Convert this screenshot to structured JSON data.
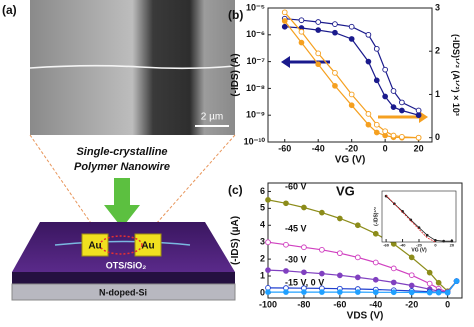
{
  "panel_a": {
    "label": "(a)",
    "scale_bar": "2 µm",
    "caption_line1": "Single-crystalline",
    "caption_line2": "Polymer Nanowire",
    "electrode_left": "Au",
    "electrode_right": "Au",
    "dielectric": "OTS/SiO₂",
    "substrate": "N-doped-Si"
  },
  "chart_data": [
    {
      "type": "line",
      "panel_label": "(b)",
      "xlabel": "VG (V)",
      "ylabel": "(-IDS) (A)",
      "y2label": "(-IDS)¹ᐟ² (A¹ᐟ²) × 10³",
      "log_y": true,
      "xlim": [
        -70,
        28
      ],
      "xticks": [
        -60,
        -40,
        -20,
        0,
        20
      ],
      "ylim": [
        1e-10,
        1e-05
      ],
      "yticks": [
        {
          "value": 1e-10,
          "label": "10⁻¹⁰"
        },
        {
          "value": 1e-09,
          "label": "10⁻⁹"
        },
        {
          "value": 1e-08,
          "label": "10⁻⁸"
        },
        {
          "value": 1e-07,
          "label": "10⁻⁷"
        },
        {
          "value": 1e-06,
          "label": "10⁻⁶"
        },
        {
          "value": 1e-05,
          "label": "10⁻⁵"
        }
      ],
      "y2lim": [
        -0.1,
        3
      ],
      "y2ticks": [
        0,
        1,
        2,
        3
      ],
      "x": [
        -60,
        -50,
        -40,
        -30,
        -20,
        -10,
        -5,
        0,
        5,
        10,
        20
      ],
      "series": [
        {
          "color": "#1a1a8c",
          "values": [
            2e-06,
            1.8e-06,
            1.5e-06,
            1.2e-06,
            7e-07,
            1e-07,
            2e-08,
            5e-09,
            2e-09,
            1.5e-09,
            1e-09
          ]
        },
        {
          "color": "#1a1a8c",
          "values": [
            4e-06,
            3.5e-06,
            3e-06,
            2.5e-06,
            2e-06,
            1e-06,
            3e-07,
            5e-08,
            8e-09,
            3e-09,
            1.5e-09
          ]
        },
        {
          "color": "#f5a020",
          "axis": "y2",
          "values": [
            2.7,
            2.2,
            1.7,
            1.2,
            0.75,
            0.3,
            0.12,
            0.05,
            0.01,
            0,
            0
          ]
        },
        {
          "color": "#f5a020",
          "axis": "y2",
          "values": [
            2.9,
            2.45,
            1.95,
            1.5,
            1.0,
            0.55,
            0.3,
            0.15,
            0.05,
            0.02,
            0
          ]
        }
      ]
    },
    {
      "type": "line",
      "panel_label": "(c)",
      "xlabel": "VDS (V)",
      "ylabel": "(-IDS) (µA)",
      "xlim": [
        -100,
        8
      ],
      "xticks": [
        -100,
        -80,
        -60,
        -40,
        -20,
        0
      ],
      "ylim": [
        -0.3,
        6.5
      ],
      "yticks": [
        0,
        1,
        2,
        3,
        4,
        5,
        6
      ],
      "x": [
        -100,
        -90,
        -80,
        -70,
        -60,
        -50,
        -40,
        -30,
        -20,
        -10,
        -5,
        0,
        5
      ],
      "annotations": [
        "-60 V",
        "-45 V",
        "-30 V",
        "-15 V, 0 V",
        "VG"
      ],
      "series": [
        {
          "color": "#8c8c1a",
          "values": [
            5.5,
            5.3,
            5.05,
            4.75,
            4.4,
            4.0,
            3.5,
            2.9,
            2.1,
            1.2,
            0.6,
            0.1,
            0.7
          ]
        },
        {
          "color": "#d040c0",
          "values": [
            3.0,
            2.85,
            2.7,
            2.55,
            2.35,
            2.1,
            1.8,
            1.45,
            1.05,
            0.55,
            0.25,
            0.05,
            0.7
          ]
        },
        {
          "color": "#8040c0",
          "values": [
            1.35,
            1.3,
            1.22,
            1.14,
            1.04,
            0.92,
            0.78,
            0.62,
            0.44,
            0.22,
            0.1,
            0.05,
            0.7
          ]
        },
        {
          "color": "#2040d0",
          "values": [
            0.3,
            0.29,
            0.28,
            0.27,
            0.25,
            0.23,
            0.2,
            0.16,
            0.12,
            0.07,
            0.04,
            0.02,
            0.7
          ]
        },
        {
          "color": "#20a0ff",
          "values": [
            0.05,
            0.05,
            0.05,
            0.05,
            0.05,
            0.05,
            0.04,
            0.04,
            0.03,
            0.02,
            0.02,
            0.02,
            0.7
          ]
        }
      ]
    },
    {
      "type": "line",
      "xlabel": "VG (V)",
      "ylabel": "(-IDS)¹ᐟ²",
      "xlim": [
        -65,
        25
      ],
      "xticks": [
        -60,
        -40,
        -20,
        0,
        20
      ],
      "ylim": [
        0,
        3
      ],
      "yticks": [],
      "x": [
        -60,
        -50,
        -40,
        -30,
        -20,
        -10,
        0,
        10,
        20
      ],
      "series": [
        {
          "color": "#222222",
          "values": [
            2.7,
            2.25,
            1.8,
            1.3,
            0.85,
            0.4,
            0.1,
            0.05,
            0.05
          ]
        },
        {
          "color": "#e02020",
          "values": [
            2.75,
            2.25,
            1.75,
            1.25,
            0.75,
            0.25,
            0,
            null,
            null
          ]
        }
      ]
    }
  ]
}
